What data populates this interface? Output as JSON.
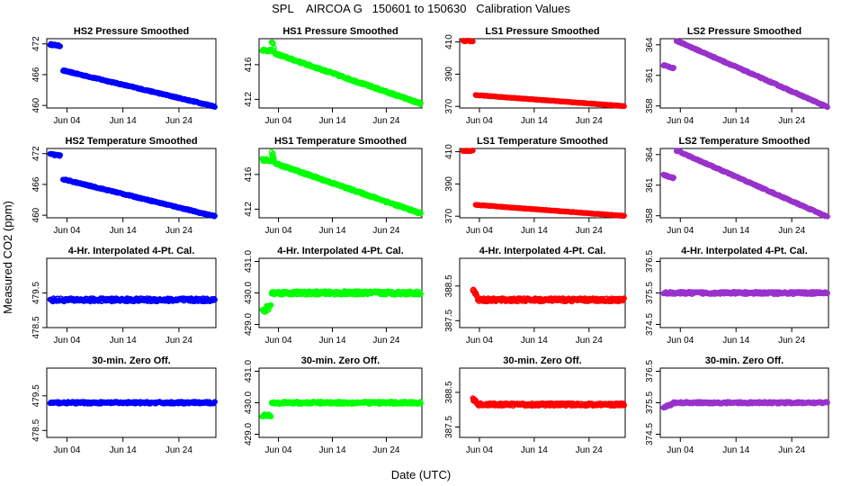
{
  "title": "SPL    AIRCOA G   150601 to 150630   Calibration Values",
  "ylabel": "Measured CO2 (ppm)",
  "xlabel": "Date (UTC)",
  "xaxis": {
    "range": [
      0.4,
      30.6
    ],
    "ticks": [
      {
        "value": 4,
        "label": "Jun 04"
      },
      {
        "value": 14,
        "label": "Jun 14"
      },
      {
        "value": 24,
        "label": "Jun 24"
      }
    ]
  },
  "colors": {
    "HS2": "#0000ff",
    "HS1": "#00ff00",
    "LS1": "#ff0000",
    "LS2": "#9932cc"
  },
  "chart_data": [
    {
      "type": "scatter",
      "title": "HS2 Pressure Smoothed",
      "series_color": "HS2",
      "ylim": [
        459.5,
        473
      ],
      "yticks": [
        {
          "value": 460,
          "label": "460"
        },
        {
          "value": 466,
          "label": "466"
        },
        {
          "value": 472,
          "label": "472"
        }
      ],
      "segments": [
        {
          "x0": 1.0,
          "x1": 2.8,
          "y0": 471.9,
          "y1": 471.6,
          "noise": 0.15
        },
        {
          "x0": 3.3,
          "x1": 30.4,
          "y0": 466.8,
          "y1": 459.8,
          "noise": 0.12
        }
      ]
    },
    {
      "type": "scatter",
      "title": "HS1 Pressure Smoothed",
      "series_color": "HS1",
      "ylim": [
        411,
        419
      ],
      "yticks": [
        {
          "value": 412,
          "label": "412"
        },
        {
          "value": 416,
          "label": "416"
        }
      ],
      "segments": [
        {
          "x0": 1.0,
          "x1": 2.6,
          "y0": 417.7,
          "y1": 417.6,
          "noise": 0.15
        },
        {
          "x0": 2.7,
          "x1": 3.2,
          "y0": 418.6,
          "y1": 417.8,
          "noise": 0.3
        },
        {
          "x0": 3.3,
          "x1": 30.4,
          "y0": 417.3,
          "y1": 411.5,
          "noise": 0.12
        }
      ]
    },
    {
      "type": "scatter",
      "title": "LS1 Pressure Smoothed",
      "series_color": "LS1",
      "ylim": [
        369,
        412
      ],
      "yticks": [
        {
          "value": 370,
          "label": "370"
        },
        {
          "value": 390,
          "label": "390"
        },
        {
          "value": 410,
          "label": "410"
        }
      ],
      "segments": [
        {
          "x0": 1.0,
          "x1": 2.8,
          "y0": 410.5,
          "y1": 410.5,
          "noise": 0.3
        },
        {
          "x0": 3.3,
          "x1": 30.4,
          "y0": 377.0,
          "y1": 370.2,
          "noise": 0.15
        }
      ]
    },
    {
      "type": "scatter",
      "title": "LS2 Pressure Smoothed",
      "series_color": "LS2",
      "ylim": [
        357.8,
        364.6
      ],
      "yticks": [
        {
          "value": 358,
          "label": "358"
        },
        {
          "value": 361,
          "label": "361"
        },
        {
          "value": 364,
          "label": "364"
        }
      ],
      "segments": [
        {
          "x0": 1.0,
          "x1": 2.8,
          "y0": 362.0,
          "y1": 361.7,
          "noise": 0.06
        },
        {
          "x0": 3.3,
          "x1": 30.4,
          "y0": 364.4,
          "y1": 357.9,
          "noise": 0.06
        }
      ]
    },
    {
      "type": "scatter",
      "title": "HS2 Temperature Smoothed",
      "series_color": "HS2",
      "ylim": [
        459.5,
        473
      ],
      "yticks": [
        {
          "value": 460,
          "label": "460"
        },
        {
          "value": 466,
          "label": "466"
        },
        {
          "value": 472,
          "label": "472"
        }
      ],
      "segments": [
        {
          "x0": 1.0,
          "x1": 2.8,
          "y0": 471.9,
          "y1": 471.6,
          "noise": 0.15
        },
        {
          "x0": 3.3,
          "x1": 30.4,
          "y0": 467.0,
          "y1": 459.8,
          "noise": 0.12
        }
      ]
    },
    {
      "type": "scatter",
      "title": "HS1 Temperature Smoothed",
      "series_color": "HS1",
      "ylim": [
        411,
        419
      ],
      "yticks": [
        {
          "value": 412,
          "label": "412"
        },
        {
          "value": 416,
          "label": "416"
        }
      ],
      "segments": [
        {
          "x0": 1.0,
          "x1": 2.6,
          "y0": 417.7,
          "y1": 417.6,
          "noise": 0.15
        },
        {
          "x0": 2.7,
          "x1": 3.2,
          "y0": 418.6,
          "y1": 417.8,
          "noise": 0.3
        },
        {
          "x0": 3.3,
          "x1": 30.4,
          "y0": 417.3,
          "y1": 411.5,
          "noise": 0.12
        }
      ]
    },
    {
      "type": "scatter",
      "title": "LS1 Temperature Smoothed",
      "series_color": "LS1",
      "ylim": [
        369,
        412
      ],
      "yticks": [
        {
          "value": 370,
          "label": "370"
        },
        {
          "value": 390,
          "label": "390"
        },
        {
          "value": 410,
          "label": "410"
        }
      ],
      "segments": [
        {
          "x0": 1.0,
          "x1": 2.8,
          "y0": 410.5,
          "y1": 410.5,
          "noise": 0.3
        },
        {
          "x0": 3.3,
          "x1": 30.4,
          "y0": 377.0,
          "y1": 370.2,
          "noise": 0.15
        }
      ]
    },
    {
      "type": "scatter",
      "title": "LS2 Temperature Smoothed",
      "series_color": "LS2",
      "ylim": [
        357.8,
        364.6
      ],
      "yticks": [
        {
          "value": 358,
          "label": "358"
        },
        {
          "value": 361,
          "label": "361"
        },
        {
          "value": 364,
          "label": "364"
        }
      ],
      "segments": [
        {
          "x0": 1.0,
          "x1": 2.8,
          "y0": 362.0,
          "y1": 361.7,
          "noise": 0.06
        },
        {
          "x0": 3.3,
          "x1": 30.4,
          "y0": 364.4,
          "y1": 357.9,
          "noise": 0.06
        }
      ]
    },
    {
      "type": "scatter",
      "title": "4-Hr. Interpolated 4-Pt. Cal.",
      "series_color": "HS2",
      "ylim": [
        478.5,
        480.5
      ],
      "yticks": [
        {
          "value": 478.5,
          "label": "478.5"
        },
        {
          "value": 479.5,
          "label": "479.5"
        }
      ],
      "segments": [
        {
          "x0": 1.0,
          "x1": 30.4,
          "y0": 479.3,
          "y1": 479.3,
          "noise": 0.05
        }
      ]
    },
    {
      "type": "scatter",
      "title": "4-Hr. Interpolated 4-Pt. Cal.",
      "series_color": "HS1",
      "ylim": [
        428.9,
        431.1
      ],
      "yticks": [
        {
          "value": 429.0,
          "label": "429.0"
        },
        {
          "value": 430.0,
          "label": "430.0"
        },
        {
          "value": 431.0,
          "label": "431.0"
        }
      ],
      "segments": [
        {
          "x0": 1.0,
          "x1": 2.6,
          "y0": 429.4,
          "y1": 429.6,
          "noise": 0.1
        },
        {
          "x0": 2.7,
          "x1": 30.4,
          "y0": 430.0,
          "y1": 430.0,
          "noise": 0.06
        }
      ]
    },
    {
      "type": "scatter",
      "title": "4-Hr. Interpolated 4-Pt. Cal.",
      "series_color": "LS1",
      "ylim": [
        387.3,
        389.3
      ],
      "yticks": [
        {
          "value": 387.5,
          "label": "387.5"
        },
        {
          "value": 388.5,
          "label": "388.5"
        }
      ],
      "segments": [
        {
          "x0": 2.8,
          "x1": 3.6,
          "y0": 388.4,
          "y1": 388.2,
          "noise": 0.05
        },
        {
          "x0": 3.7,
          "x1": 30.4,
          "y0": 388.1,
          "y1": 388.1,
          "noise": 0.05
        }
      ]
    },
    {
      "type": "scatter",
      "title": "4-Hr. Interpolated 4-Pt. Cal.",
      "series_color": "LS2",
      "ylim": [
        374.4,
        376.6
      ],
      "yticks": [
        {
          "value": 374.5,
          "label": "374.5"
        },
        {
          "value": 375.5,
          "label": "375.5"
        },
        {
          "value": 376.5,
          "label": "376.5"
        }
      ],
      "segments": [
        {
          "x0": 1.0,
          "x1": 30.4,
          "y0": 375.5,
          "y1": 375.5,
          "noise": 0.04
        }
      ]
    },
    {
      "type": "scatter",
      "title": "30-min. Zero Off.",
      "series_color": "HS2",
      "ylim": [
        478.3,
        480.3
      ],
      "yticks": [
        {
          "value": 478.5,
          "label": "478.5"
        },
        {
          "value": 479.5,
          "label": "479.5"
        }
      ],
      "segments": [
        {
          "x0": 1.0,
          "x1": 30.4,
          "y0": 479.3,
          "y1": 479.3,
          "noise": 0.03
        }
      ]
    },
    {
      "type": "scatter",
      "title": "30-min. Zero Off.",
      "series_color": "HS1",
      "ylim": [
        428.9,
        431.1
      ],
      "yticks": [
        {
          "value": 429.0,
          "label": "429.0"
        },
        {
          "value": 430.0,
          "label": "430.0"
        },
        {
          "value": 431.0,
          "label": "431.0"
        }
      ],
      "segments": [
        {
          "x0": 1.0,
          "x1": 2.6,
          "y0": 429.6,
          "y1": 429.6,
          "noise": 0.04
        },
        {
          "x0": 2.7,
          "x1": 30.4,
          "y0": 430.0,
          "y1": 430.0,
          "noise": 0.04
        }
      ]
    },
    {
      "type": "scatter",
      "title": "30-min. Zero Off.",
      "series_color": "LS1",
      "ylim": [
        387.2,
        389.2
      ],
      "yticks": [
        {
          "value": 387.5,
          "label": "387.5"
        },
        {
          "value": 388.5,
          "label": "388.5"
        }
      ],
      "segments": [
        {
          "x0": 2.8,
          "x1": 3.6,
          "y0": 388.3,
          "y1": 388.2,
          "noise": 0.04
        },
        {
          "x0": 3.7,
          "x1": 30.4,
          "y0": 388.15,
          "y1": 388.15,
          "noise": 0.04
        }
      ]
    },
    {
      "type": "scatter",
      "title": "30-min. Zero Off.",
      "series_color": "LS2",
      "ylim": [
        374.4,
        376.6
      ],
      "yticks": [
        {
          "value": 374.5,
          "label": "374.5"
        },
        {
          "value": 375.5,
          "label": "375.5"
        },
        {
          "value": 376.5,
          "label": "376.5"
        }
      ],
      "segments": [
        {
          "x0": 1.0,
          "x1": 2.5,
          "y0": 375.35,
          "y1": 375.45,
          "noise": 0.03
        },
        {
          "x0": 2.6,
          "x1": 30.4,
          "y0": 375.5,
          "y1": 375.5,
          "noise": 0.03
        }
      ]
    }
  ]
}
